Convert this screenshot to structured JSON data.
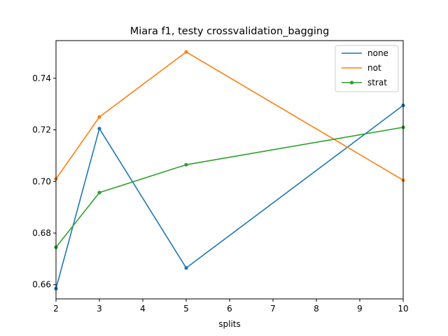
{
  "chart_data": {
    "type": "line",
    "title": "Miara f1, testy crossvalidation_bagging",
    "xlabel": "splits",
    "ylabel": "",
    "x": [
      2,
      3,
      5,
      10
    ],
    "xlim": [
      2,
      10
    ],
    "ylim": [
      0.6545,
      0.7546
    ],
    "xticks": [
      2,
      3,
      4,
      5,
      6,
      7,
      8,
      9,
      10
    ],
    "yticks": [
      0.66,
      0.68,
      0.7,
      0.72,
      0.74
    ],
    "grid": false,
    "legend_position": "top-right",
    "series": [
      {
        "name": "none",
        "color": "#1f77b4",
        "values": [
          0.6585,
          0.7205,
          0.6665,
          0.7295
        ]
      },
      {
        "name": "not",
        "color": "#ff7f0e",
        "values": [
          0.701,
          0.725,
          0.7502,
          0.7005
        ]
      },
      {
        "name": "strat",
        "color": "#2ca02c",
        "values": [
          0.6745,
          0.6957,
          0.7065,
          0.721
        ]
      }
    ]
  }
}
